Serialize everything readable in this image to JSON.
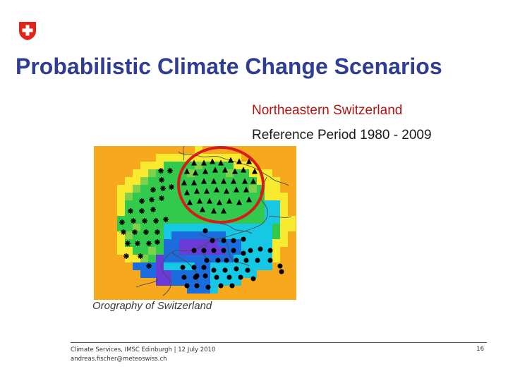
{
  "header": {
    "logo_icon": "swiss-cross-shield-icon",
    "title": "Probabilistic Climate Change Scenarios"
  },
  "subtitle": {
    "region": "Northeastern Switzerland",
    "period": "Reference Period 1980 - 2009"
  },
  "figure": {
    "caption": "Orography of Switzerland",
    "highlight_icon": "red-circle-icon",
    "marker_types": [
      "asterisk-icon",
      "triangle-icon",
      "dot-icon"
    ],
    "colors": {
      "orange": "#f7a91d",
      "yellow": "#f8ea2e",
      "light_green": "#7fd04a",
      "green": "#33c94c",
      "cyan": "#16c8e3",
      "blue": "#1b6dde",
      "purple": "#6b3bd9",
      "highlight": "#d81a1a",
      "marker": "#000000"
    }
  },
  "footer": {
    "line1": "Climate Services, IMSC Edinburgh | 12 July 2010",
    "line2": "andreas.fischer@meteoswiss.ch",
    "page": "16"
  }
}
